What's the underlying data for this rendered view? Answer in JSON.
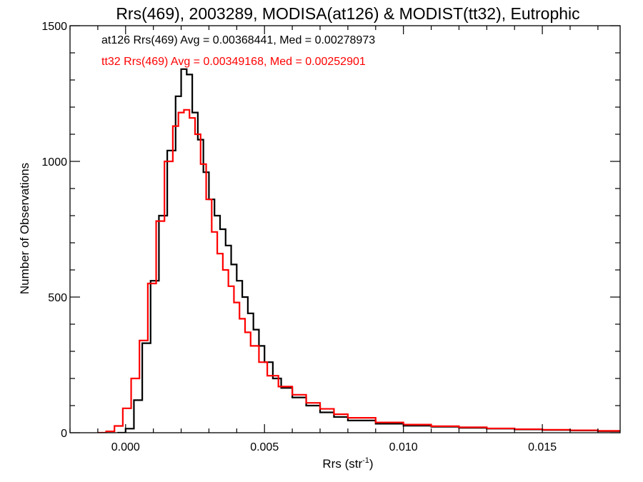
{
  "chart_data": {
    "type": "line",
    "title": "Rrs(469), 2003289, MODISA(at126) & MODIST(tt32), Eutrophic",
    "xlabel": "Rrs (str",
    "xlabel_sup": "-1",
    "xlabel_close": ")",
    "ylabel": "Number of Observations",
    "xlim": [
      -0.002,
      0.0178
    ],
    "ylim": [
      0,
      1500
    ],
    "x_ticks": [
      0.0,
      0.005,
      0.01,
      0.015
    ],
    "x_tick_labels": [
      "0.000",
      "0.005",
      "0.010",
      "0.015"
    ],
    "y_ticks": [
      0,
      500,
      1000,
      1500
    ],
    "y_tick_labels": [
      "0",
      "500",
      "1000",
      "1500"
    ],
    "grid": false,
    "legend_position": "top-left",
    "series": [
      {
        "name": "at126",
        "color": "#000000",
        "stats_text": "at126 Rrs(469) Avg = 0.00368441, Med = 0.00278973",
        "x": [
          -0.0003,
          0.0,
          0.0003,
          0.0006,
          0.0009,
          0.0012,
          0.0015,
          0.0018,
          0.002,
          0.0022,
          0.0024,
          0.0026,
          0.0028,
          0.003,
          0.0032,
          0.0034,
          0.0036,
          0.0038,
          0.004,
          0.0042,
          0.0044,
          0.0046,
          0.0048,
          0.005,
          0.0053,
          0.0056,
          0.006,
          0.0065,
          0.007,
          0.0075,
          0.008,
          0.009,
          0.01,
          0.011,
          0.012,
          0.013,
          0.014,
          0.015,
          0.016,
          0.017,
          0.0178
        ],
        "y": [
          0,
          15,
          120,
          330,
          560,
          800,
          1040,
          1240,
          1340,
          1320,
          1180,
          1080,
          960,
          860,
          800,
          750,
          690,
          620,
          560,
          500,
          440,
          380,
          320,
          260,
          200,
          165,
          130,
          100,
          75,
          58,
          45,
          33,
          26,
          22,
          18,
          15,
          12,
          10,
          8,
          6,
          5
        ]
      },
      {
        "name": "tt32",
        "color": "#ff0000",
        "stats_text": "tt32 Rrs(469) Avg = 0.00349168, Med = 0.00252901",
        "x": [
          -0.001,
          -0.0007,
          -0.0004,
          -0.0001,
          0.0002,
          0.0005,
          0.0008,
          0.0011,
          0.0014,
          0.0017,
          0.0019,
          0.0021,
          0.0023,
          0.0025,
          0.0027,
          0.0029,
          0.0031,
          0.0033,
          0.0035,
          0.0037,
          0.0039,
          0.0041,
          0.0043,
          0.0045,
          0.0048,
          0.0051,
          0.0055,
          0.006,
          0.0065,
          0.007,
          0.0075,
          0.008,
          0.009,
          0.01,
          0.011,
          0.012,
          0.013,
          0.014,
          0.015,
          0.016,
          0.017,
          0.0178
        ],
        "y": [
          0,
          5,
          25,
          90,
          200,
          340,
          550,
          780,
          1000,
          1130,
          1180,
          1190,
          1160,
          1100,
          990,
          860,
          740,
          660,
          600,
          540,
          480,
          420,
          370,
          320,
          260,
          210,
          170,
          140,
          110,
          88,
          68,
          55,
          38,
          30,
          24,
          20,
          16,
          13,
          11,
          9,
          7,
          6
        ]
      }
    ]
  }
}
